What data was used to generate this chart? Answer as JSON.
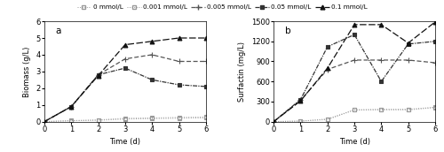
{
  "legend_labels": [
    "0 mmol/L",
    "0.001 mmol/L",
    "0.005 mmol/L",
    "0.05 mmol/L",
    "0.1 mmol/L"
  ],
  "biomass": {
    "title": "a",
    "xlabel": "Time (d)",
    "ylabel": "Biomass (g/L)",
    "ylim": [
      0,
      6
    ],
    "yticks": [
      0,
      1,
      2,
      3,
      4,
      5,
      6
    ],
    "xlim": [
      0,
      6
    ],
    "xticks": [
      0,
      1,
      2,
      3,
      4,
      5,
      6
    ],
    "series": {
      "0": [
        0,
        0.05,
        0.08,
        0.15,
        0.18,
        0.2,
        0.22
      ],
      "0.001": [
        0,
        0.06,
        0.1,
        0.2,
        0.22,
        0.25,
        0.28
      ],
      "0.005": [
        0,
        0.9,
        2.8,
        3.75,
        4.0,
        3.6,
        3.6
      ],
      "0.05": [
        0,
        0.9,
        2.8,
        3.2,
        2.5,
        2.2,
        2.1
      ],
      "0.1": [
        0,
        0.9,
        2.75,
        4.6,
        4.8,
        5.0,
        5.0
      ]
    }
  },
  "surfactin": {
    "title": "b",
    "xlabel": "Time (d)",
    "ylabel": "Surfactin (mg/L)",
    "ylim": [
      0,
      1500
    ],
    "yticks": [
      0,
      300,
      600,
      900,
      1200,
      1500
    ],
    "xlim": [
      0,
      6
    ],
    "xticks": [
      0,
      1,
      2,
      3,
      4,
      5,
      6
    ],
    "series": {
      "0": [
        0,
        5,
        40,
        175,
        175,
        175,
        210
      ],
      "0.001": [
        0,
        10,
        30,
        175,
        185,
        185,
        215
      ],
      "0.005": [
        0,
        320,
        780,
        920,
        920,
        920,
        880
      ],
      "0.05": [
        0,
        330,
        1120,
        1300,
        600,
        1160,
        1200
      ],
      "0.1": [
        0,
        310,
        800,
        1450,
        1450,
        1175,
        1490
      ]
    }
  },
  "series_keys": [
    "0",
    "0.001",
    "0.005",
    "0.05",
    "0.1"
  ],
  "line_configs": [
    {
      "color": "#999999",
      "linestyle": ":",
      "marker": "s",
      "markersize": 2.5,
      "linewidth": 0.7,
      "markerfacecolor": "none",
      "markeredgecolor": "#999999",
      "dashes": []
    },
    {
      "color": "#999999",
      "linestyle": ":",
      "marker": "s",
      "markersize": 2.5,
      "linewidth": 0.7,
      "markerfacecolor": "none",
      "markeredgecolor": "#999999",
      "dashes": []
    },
    {
      "color": "#555555",
      "linestyle": "--",
      "marker": "+",
      "markersize": 4.5,
      "linewidth": 0.9,
      "markerfacecolor": "#555555",
      "markeredgecolor": "#555555",
      "dashes": [
        4,
        2
      ]
    },
    {
      "color": "#333333",
      "linestyle": "-.",
      "marker": "s",
      "markersize": 3.0,
      "linewidth": 0.9,
      "markerfacecolor": "#333333",
      "markeredgecolor": "#333333",
      "dashes": [
        4,
        1,
        1,
        1
      ]
    },
    {
      "color": "#111111",
      "linestyle": "--",
      "marker": "^",
      "markersize": 3.5,
      "linewidth": 0.9,
      "markerfacecolor": "#111111",
      "markeredgecolor": "#111111",
      "dashes": [
        6,
        2
      ]
    }
  ],
  "background_color": "#ffffff",
  "fontsize": 6.0
}
